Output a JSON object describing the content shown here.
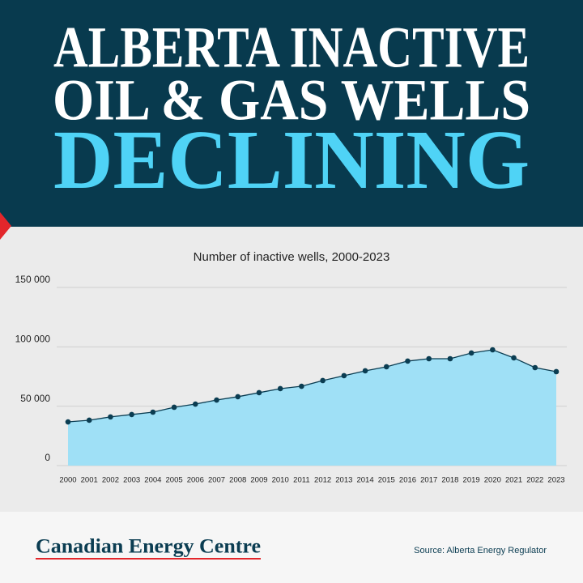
{
  "header": {
    "line1": "ALBERTA INACTIVE",
    "line2": "OIL & GAS WELLS",
    "line3": "DECLINING"
  },
  "chart_data": {
    "type": "area",
    "title": "Number of inactive wells, 2000-2023",
    "categories": [
      "2000",
      "2001",
      "2002",
      "2003",
      "2004",
      "2005",
      "2006",
      "2007",
      "2008",
      "2009",
      "2010",
      "2011",
      "2012",
      "2013",
      "2014",
      "2015",
      "2016",
      "2017",
      "2018",
      "2019",
      "2020",
      "2021",
      "2022",
      "2023"
    ],
    "values": [
      36800,
      38200,
      41000,
      43000,
      45000,
      49100,
      51800,
      55200,
      58000,
      61400,
      64800,
      66800,
      71600,
      75700,
      79800,
      83200,
      88000,
      90000,
      90000,
      94800,
      97500,
      90700,
      82500,
      79100
    ],
    "color": "#0b3d52",
    "fill_color": "#9fe0f6",
    "ylim": [
      0,
      150000
    ],
    "yticks": [
      0,
      {
        "value": 50000,
        "label": "50 000"
      },
      {
        "value": 100000,
        "label": "100 000"
      },
      {
        "value": 150000,
        "label": "150 000"
      }
    ],
    "grid": true
  },
  "footer": {
    "brand": "Canadian Energy Centre",
    "source": "Source: Alberta Energy Regulator"
  }
}
